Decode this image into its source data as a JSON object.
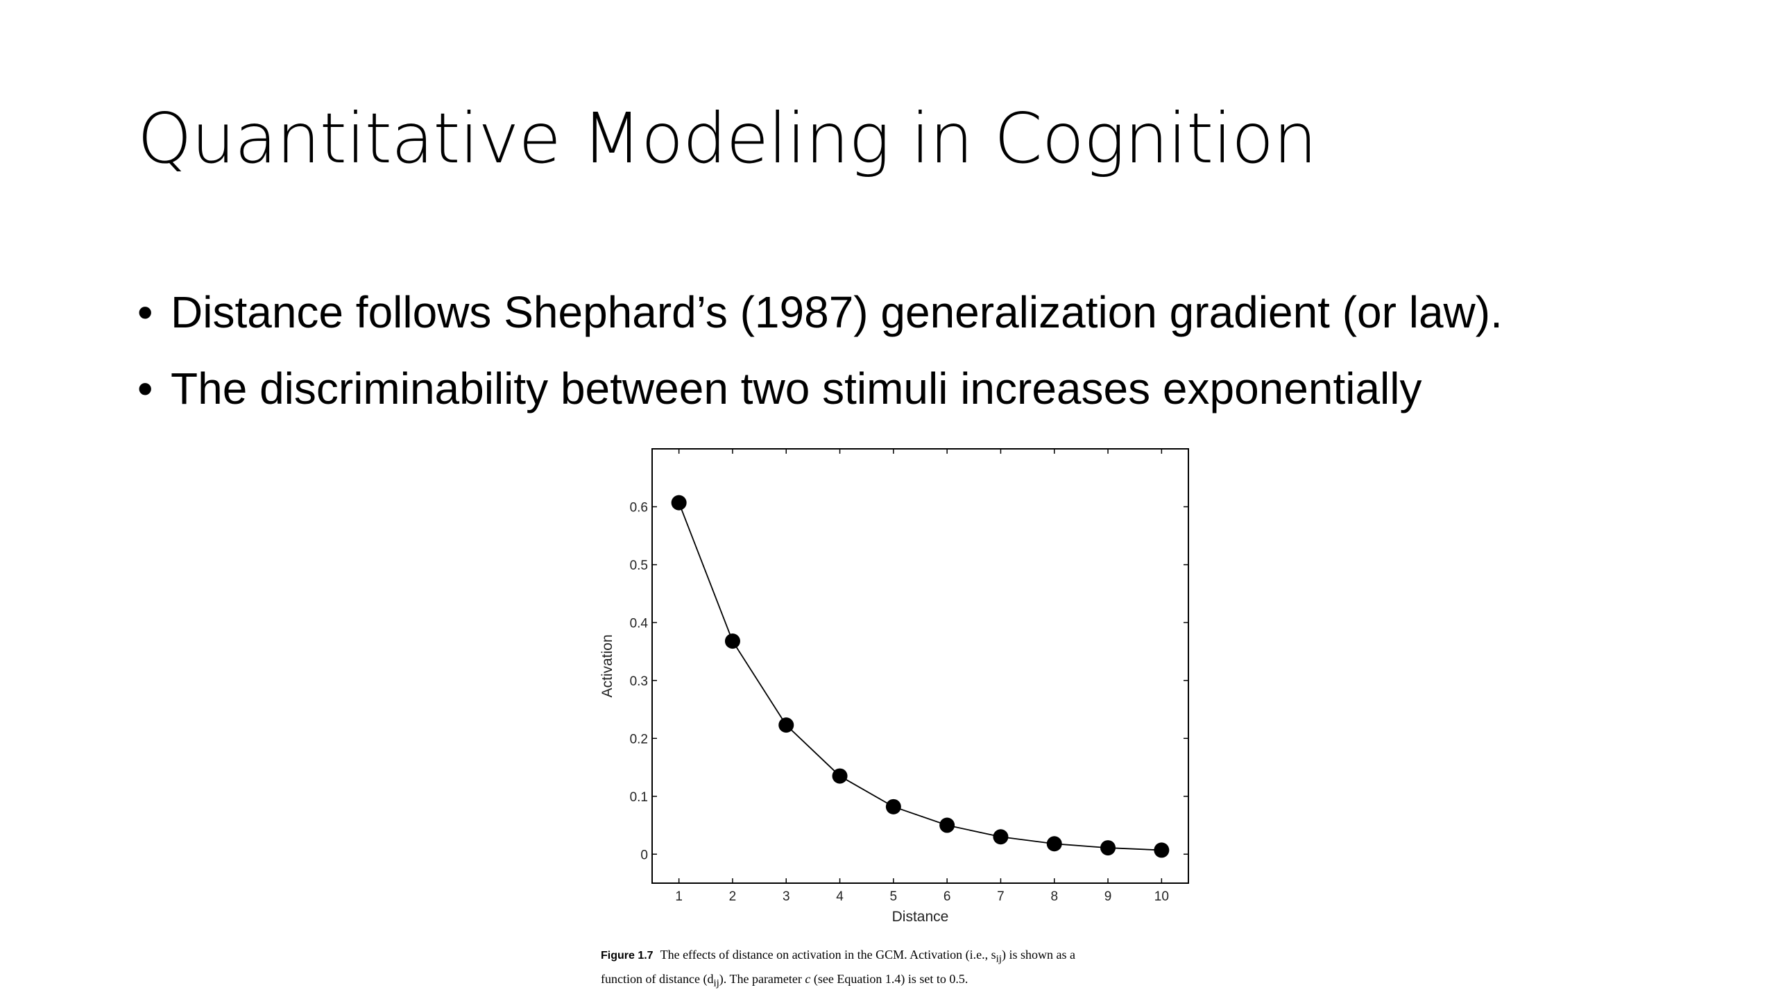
{
  "slide": {
    "title": "Quantitative Modeling in Cognition",
    "bullets": [
      "Distance follows Shephard’s (1987) generalization gradient (or law).",
      "The discriminability between two stimuli increases exponentially"
    ]
  },
  "caption": {
    "label": "Figure 1.7",
    "line1": "The effects of distance on activation in the GCM. Activation (i.e., s",
    "sub1": "ij",
    "line1_end": ") is shown as a",
    "line2": "function of distance (d",
    "sub2": "ij",
    "line2_mid": "). The parameter ",
    "param": "c",
    "line2_end": " (see Equation 1.4) is set to 0.5."
  },
  "chart_data": {
    "type": "line",
    "xlabel": "Distance",
    "ylabel": "Activation",
    "xlim": [
      0.5,
      10.5
    ],
    "ylim": [
      -0.05,
      0.7
    ],
    "xticks": [
      1,
      2,
      3,
      4,
      5,
      6,
      7,
      8,
      9,
      10
    ],
    "yticks": [
      0,
      0.1,
      0.2,
      0.3,
      0.4,
      0.5,
      0.6
    ],
    "ytick_labels": [
      "0",
      "0.1",
      "0.2",
      "0.3",
      "0.4",
      "0.5",
      "0.6"
    ],
    "grid": false,
    "series": [
      {
        "x": [
          1,
          2,
          3,
          4,
          5,
          6,
          7,
          8,
          9,
          10
        ],
        "values": [
          0.607,
          0.368,
          0.223,
          0.135,
          0.082,
          0.05,
          0.03,
          0.018,
          0.011,
          0.007
        ],
        "color": "#000000",
        "marker": "filled-circle"
      }
    ]
  }
}
